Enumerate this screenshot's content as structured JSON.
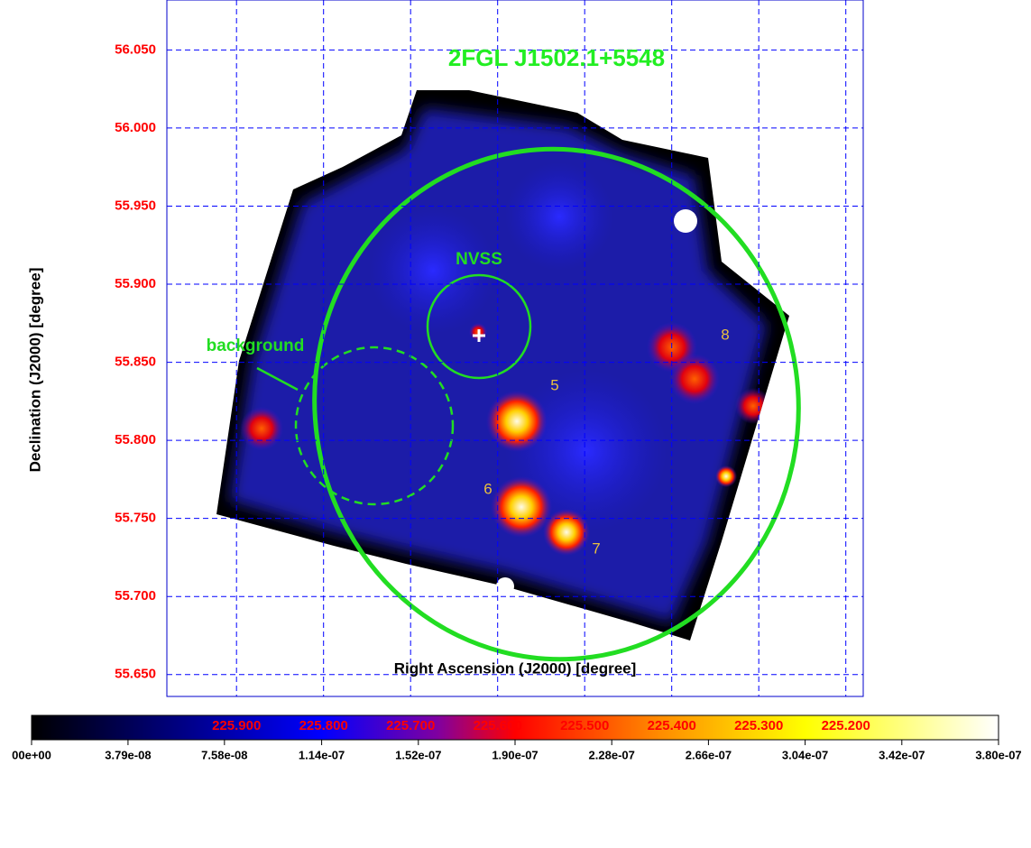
{
  "chart_data": {
    "type": "image",
    "title": "2FGL J1502.1+5548",
    "x_label": "Right Ascension (J2000) [degree]",
    "y_label": "Declination (J2000) [degree]",
    "xlim": [
      225.98,
      225.18
    ],
    "ylim": [
      55.636,
      56.082
    ],
    "xticks": [
      {
        "value": 225.9,
        "label": "225.900"
      },
      {
        "value": 225.8,
        "label": "225.800"
      },
      {
        "value": 225.7,
        "label": "225.700"
      },
      {
        "value": 225.6,
        "label": "225.600"
      },
      {
        "value": 225.5,
        "label": "225.500"
      },
      {
        "value": 225.4,
        "label": "225.400"
      },
      {
        "value": 225.3,
        "label": "225.300"
      },
      {
        "value": 225.2,
        "label": "225.200"
      }
    ],
    "yticks": [
      {
        "value": 55.65,
        "label": "55.650"
      },
      {
        "value": 55.7,
        "label": "55.700"
      },
      {
        "value": 55.75,
        "label": "55.750"
      },
      {
        "value": 55.8,
        "label": "55.800"
      },
      {
        "value": 55.85,
        "label": "55.850"
      },
      {
        "value": 55.9,
        "label": "55.900"
      },
      {
        "value": 55.95,
        "label": "55.950"
      },
      {
        "value": 56.0,
        "label": "56.000"
      },
      {
        "value": 56.05,
        "label": "56.050"
      }
    ],
    "grid": true,
    "tick_color": "#ff0000",
    "grid_color": "#0000ff",
    "annotations": [
      "NVSS",
      "background",
      "5",
      "6",
      "7",
      "8"
    ],
    "colorbar": {
      "lim": [
        0,
        3.8e-07
      ],
      "ticks": [
        {
          "value": 0,
          "label": "00e+00"
        },
        {
          "value": 3.79e-08,
          "label": "3.79e-08"
        },
        {
          "value": 7.58e-08,
          "label": "7.58e-08"
        },
        {
          "value": 1.14e-07,
          "label": "1.14e-07"
        },
        {
          "value": 1.52e-07,
          "label": "1.52e-07"
        },
        {
          "value": 1.9e-07,
          "label": "1.90e-07"
        },
        {
          "value": 2.28e-07,
          "label": "2.28e-07"
        },
        {
          "value": 2.66e-07,
          "label": "2.66e-07"
        },
        {
          "value": 3.04e-07,
          "label": "3.04e-07"
        },
        {
          "value": 3.42e-07,
          "label": "3.42e-07"
        },
        {
          "value": 3.8e-07,
          "label": "3.80e-07"
        }
      ]
    }
  }
}
